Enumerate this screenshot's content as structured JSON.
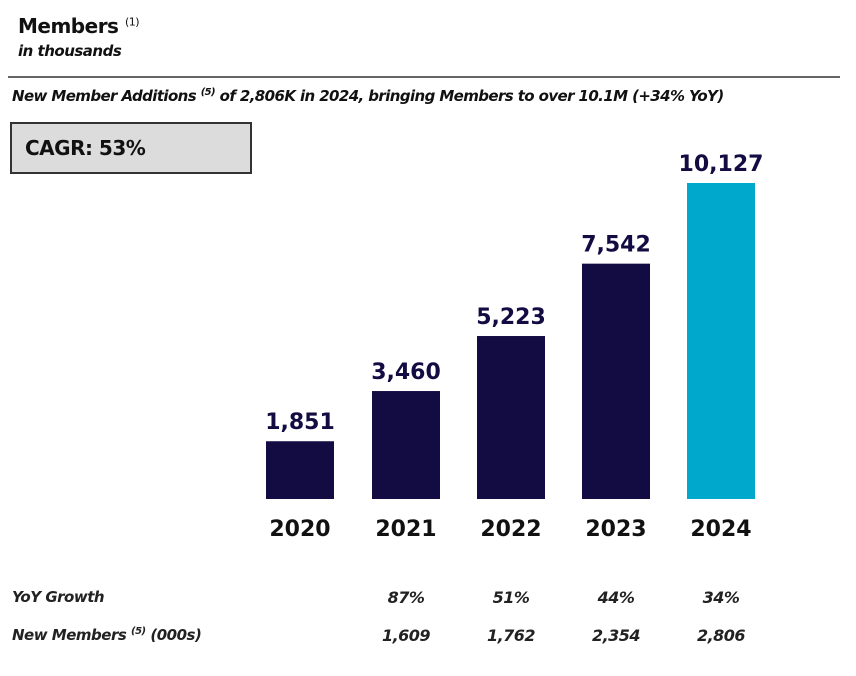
{
  "header": {
    "title": "Members",
    "title_note": "(1)",
    "subtitle": "in thousands",
    "headline_pre": "New Member Additions",
    "headline_note": "(5)",
    "headline_post": " of 2,806K in 2024, bringing Members to over 10.1M  (+34% YoY)"
  },
  "cagr_label": "CAGR: 53%",
  "chart_data": {
    "type": "bar",
    "categories": [
      "2020",
      "2021",
      "2022",
      "2023",
      "2024"
    ],
    "values": [
      1851,
      3460,
      5223,
      7542,
      10127
    ],
    "data_labels": [
      "1,851",
      "3,460",
      "5,223",
      "7,542",
      "10,127"
    ],
    "colors": [
      "#120c42",
      "#120c42",
      "#120c42",
      "#120c42",
      "#00a9cc"
    ],
    "ylim": [
      0,
      10127
    ],
    "grid": false
  },
  "table": {
    "yoy_label": "YoY Growth",
    "yoy": [
      "87%",
      "51%",
      "44%",
      "34%"
    ],
    "new_label": "New Members",
    "new_note": "(5)",
    "new_unit": " (000s)",
    "new": [
      "1,609",
      "1,762",
      "2,354",
      "2,806"
    ]
  }
}
